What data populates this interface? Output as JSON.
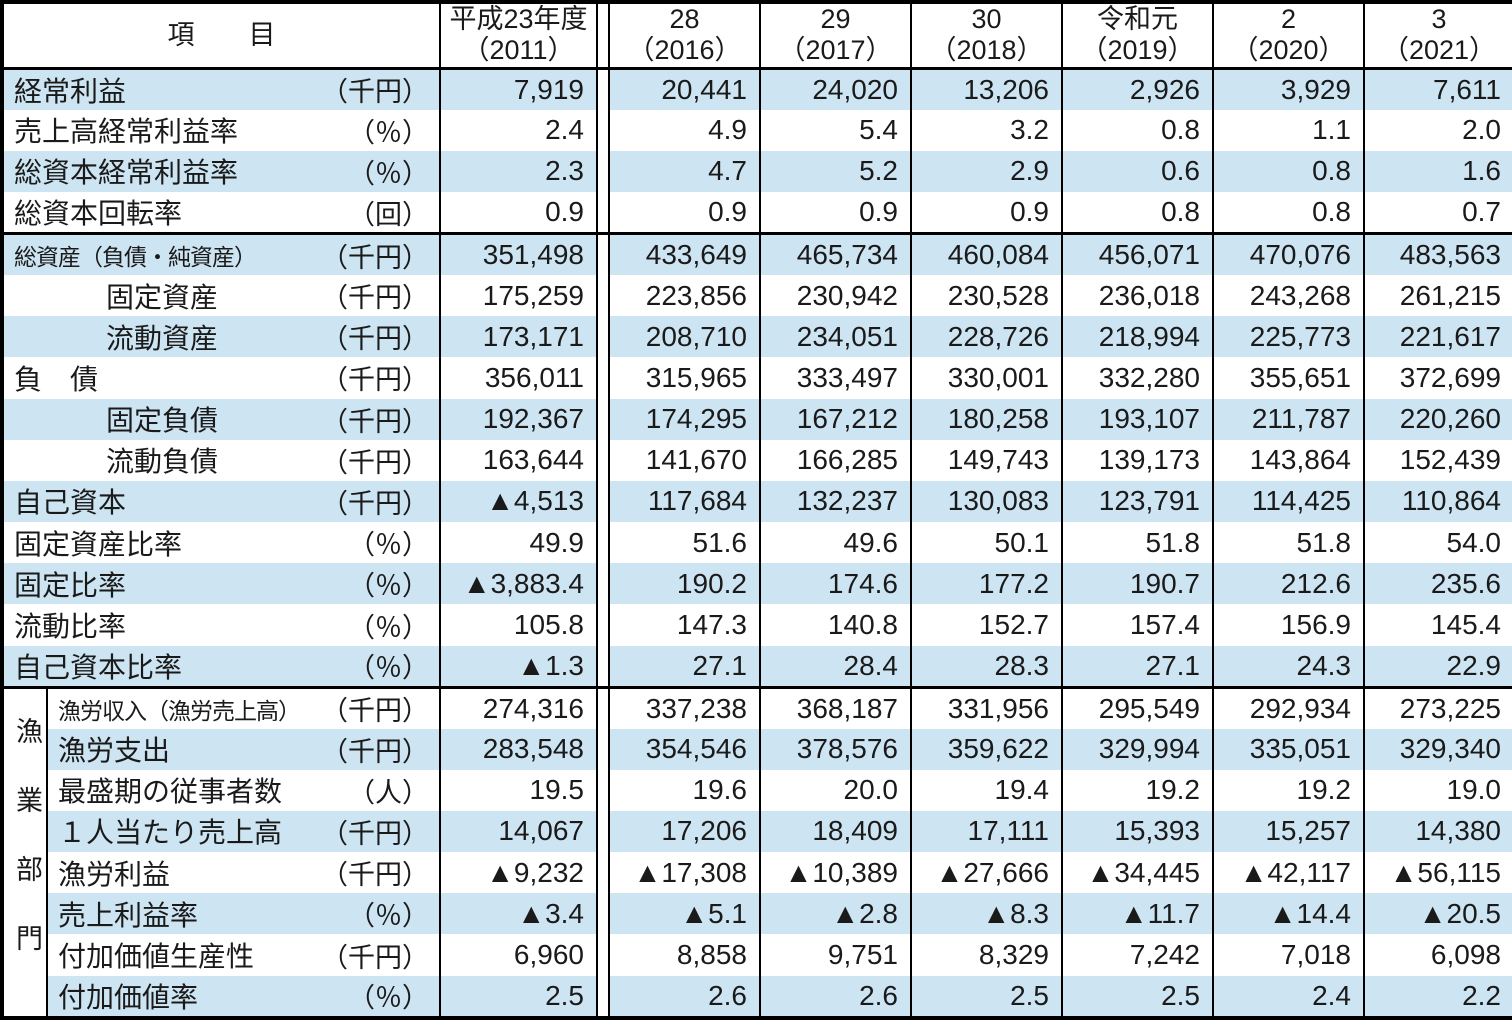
{
  "header": {
    "item_label": "項　　目",
    "year_columns": [
      {
        "era_line": "平成23年度",
        "year_line": "（2011）"
      },
      {
        "era_line": "28",
        "year_line": "（2016）"
      },
      {
        "era_line": "29",
        "year_line": "（2017）"
      },
      {
        "era_line": "30",
        "year_line": "（2018）"
      },
      {
        "era_line": "令和元",
        "year_line": "（2019）"
      },
      {
        "era_line": "2",
        "year_line": "（2020）"
      },
      {
        "era_line": "3",
        "year_line": "（2021）"
      }
    ]
  },
  "fishery_section_label": "漁業部門",
  "colors": {
    "band_blue": "#cde4f2",
    "rule_black": "#000000"
  },
  "rows": [
    {
      "label": "経常利益",
      "unit": "（千円）",
      "indent": false,
      "section": "main",
      "divider_above": false,
      "values": [
        "7,919",
        "20,441",
        "24,020",
        "13,206",
        "2,926",
        "3,929",
        "7,611"
      ]
    },
    {
      "label": "売上高経常利益率",
      "unit": "（％）",
      "indent": false,
      "section": "main",
      "divider_above": false,
      "values": [
        "2.4",
        "4.9",
        "5.4",
        "3.2",
        "0.8",
        "1.1",
        "2.0"
      ]
    },
    {
      "label": "総資本経常利益率",
      "unit": "（％）",
      "indent": false,
      "section": "main",
      "divider_above": false,
      "values": [
        "2.3",
        "4.7",
        "5.2",
        "2.9",
        "0.6",
        "0.8",
        "1.6"
      ]
    },
    {
      "label": "総資本回転率",
      "unit": "（回）",
      "indent": false,
      "section": "main",
      "divider_above": false,
      "values": [
        "0.9",
        "0.9",
        "0.9",
        "0.9",
        "0.8",
        "0.8",
        "0.7"
      ]
    },
    {
      "label": "総資産（負債・純資産）",
      "unit": "（千円）",
      "indent": false,
      "section": "main",
      "divider_above": true,
      "values": [
        "351,498",
        "433,649",
        "465,734",
        "460,084",
        "456,071",
        "470,076",
        "483,563"
      ]
    },
    {
      "label": "固定資産",
      "unit": "（千円）",
      "indent": true,
      "section": "main",
      "divider_above": false,
      "values": [
        "175,259",
        "223,856",
        "230,942",
        "230,528",
        "236,018",
        "243,268",
        "261,215"
      ]
    },
    {
      "label": "流動資産",
      "unit": "（千円）",
      "indent": true,
      "section": "main",
      "divider_above": false,
      "values": [
        "173,171",
        "208,710",
        "234,051",
        "228,726",
        "218,994",
        "225,773",
        "221,617"
      ]
    },
    {
      "label": "負　債",
      "unit": "（千円）",
      "indent": false,
      "section": "main",
      "divider_above": false,
      "values": [
        "356,011",
        "315,965",
        "333,497",
        "330,001",
        "332,280",
        "355,651",
        "372,699"
      ]
    },
    {
      "label": "固定負債",
      "unit": "（千円）",
      "indent": true,
      "section": "main",
      "divider_above": false,
      "values": [
        "192,367",
        "174,295",
        "167,212",
        "180,258",
        "193,107",
        "211,787",
        "220,260"
      ]
    },
    {
      "label": "流動負債",
      "unit": "（千円）",
      "indent": true,
      "section": "main",
      "divider_above": false,
      "values": [
        "163,644",
        "141,670",
        "166,285",
        "149,743",
        "139,173",
        "143,864",
        "152,439"
      ]
    },
    {
      "label": "自己資本",
      "unit": "（千円）",
      "indent": false,
      "section": "main",
      "divider_above": false,
      "values": [
        "▲4,513",
        "117,684",
        "132,237",
        "130,083",
        "123,791",
        "114,425",
        "110,864"
      ]
    },
    {
      "label": "固定資産比率",
      "unit": "（％）",
      "indent": false,
      "section": "main",
      "divider_above": false,
      "values": [
        "49.9",
        "51.6",
        "49.6",
        "50.1",
        "51.8",
        "51.8",
        "54.0"
      ]
    },
    {
      "label": "固定比率",
      "unit": "（％）",
      "indent": false,
      "section": "main",
      "divider_above": false,
      "values": [
        "▲3,883.4",
        "190.2",
        "174.6",
        "177.2",
        "190.7",
        "212.6",
        "235.6"
      ]
    },
    {
      "label": "流動比率",
      "unit": "（％）",
      "indent": false,
      "section": "main",
      "divider_above": false,
      "values": [
        "105.8",
        "147.3",
        "140.8",
        "152.7",
        "157.4",
        "156.9",
        "145.4"
      ]
    },
    {
      "label": "自己資本比率",
      "unit": "（％）",
      "indent": false,
      "section": "main",
      "divider_above": false,
      "values": [
        "▲1.3",
        "27.1",
        "28.4",
        "28.3",
        "27.1",
        "24.3",
        "22.9"
      ]
    },
    {
      "label": "漁労収入（漁労売上高）",
      "unit": "（千円）",
      "indent": false,
      "section": "fishery",
      "divider_above": true,
      "values": [
        "274,316",
        "337,238",
        "368,187",
        "331,956",
        "295,549",
        "292,934",
        "273,225"
      ]
    },
    {
      "label": "漁労支出",
      "unit": "（千円）",
      "indent": false,
      "section": "fishery",
      "divider_above": false,
      "values": [
        "283,548",
        "354,546",
        "378,576",
        "359,622",
        "329,994",
        "335,051",
        "329,340"
      ]
    },
    {
      "label": "最盛期の従事者数",
      "unit": "（人）",
      "indent": false,
      "section": "fishery",
      "divider_above": false,
      "values": [
        "19.5",
        "19.6",
        "20.0",
        "19.4",
        "19.2",
        "19.2",
        "19.0"
      ]
    },
    {
      "label": "１人当たり売上高",
      "unit": "（千円）",
      "indent": false,
      "section": "fishery",
      "divider_above": false,
      "values": [
        "14,067",
        "17,206",
        "18,409",
        "17,111",
        "15,393",
        "15,257",
        "14,380"
      ]
    },
    {
      "label": "漁労利益",
      "unit": "（千円）",
      "indent": false,
      "section": "fishery",
      "divider_above": false,
      "values": [
        "▲9,232",
        "▲17,308",
        "▲10,389",
        "▲27,666",
        "▲34,445",
        "▲42,117",
        "▲56,115"
      ]
    },
    {
      "label": "売上利益率",
      "unit": "（％）",
      "indent": false,
      "section": "fishery",
      "divider_above": false,
      "values": [
        "▲3.4",
        "▲5.1",
        "▲2.8",
        "▲8.3",
        "▲11.7",
        "▲14.4",
        "▲20.5"
      ]
    },
    {
      "label": "付加価値生産性",
      "unit": "（千円）",
      "indent": false,
      "section": "fishery",
      "divider_above": false,
      "values": [
        "6,960",
        "8,858",
        "9,751",
        "8,329",
        "7,242",
        "7,018",
        "6,098"
      ]
    },
    {
      "label": "付加価値率",
      "unit": "（％）",
      "indent": false,
      "section": "fishery",
      "divider_above": false,
      "values": [
        "2.5",
        "2.6",
        "2.6",
        "2.5",
        "2.5",
        "2.4",
        "2.2"
      ]
    }
  ]
}
